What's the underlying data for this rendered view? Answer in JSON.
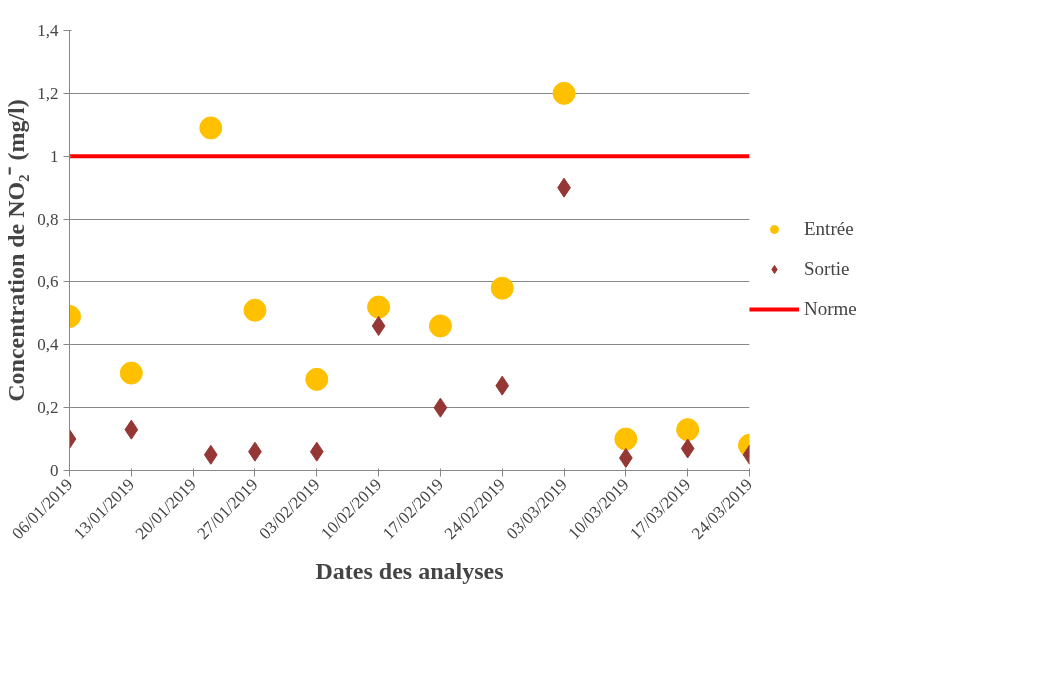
{
  "chart_data": {
    "type": "scatter",
    "xlabel": "Dates des analyses",
    "ylabel": "Concentration de NO₂⁻ (mg/l)",
    "x": [
      "2019-01-06",
      "2019-01-13",
      "2019-01-22",
      "2019-01-27",
      "2019-02-03",
      "2019-02-10",
      "2019-02-17",
      "2019-02-24",
      "2019-03-03",
      "2019-03-10",
      "2019-03-17",
      "2019-03-24"
    ],
    "series": [
      {
        "name": "Entrée",
        "color": "#ffc000",
        "marker": "circle",
        "values": [
          0.49,
          0.31,
          1.09,
          0.51,
          0.29,
          0.52,
          0.46,
          0.58,
          1.2,
          0.1,
          0.13,
          0.08
        ]
      },
      {
        "name": "Sortie",
        "color": "#953735",
        "marker": "diamond",
        "values": [
          0.1,
          0.13,
          0.05,
          0.06,
          0.06,
          0.46,
          0.2,
          0.27,
          0.9,
          0.04,
          0.07,
          0.05
        ]
      },
      {
        "name": "Norme",
        "color": "#ff0000",
        "type": "line",
        "marker": "none",
        "x": [
          "2019-01-06",
          "2019-03-24"
        ],
        "values": [
          1,
          1
        ]
      }
    ],
    "xlim": [
      "2019-01-06",
      "2019-03-24"
    ],
    "xticks": [
      {
        "value": "2019-01-06",
        "label": "06/01/2019"
      },
      {
        "value": "2019-01-13",
        "label": "13/01/2019"
      },
      {
        "value": "2019-01-20",
        "label": "20/01/2019"
      },
      {
        "value": "2019-01-27",
        "label": "27/01/2019"
      },
      {
        "value": "2019-02-03",
        "label": "03/02/2019"
      },
      {
        "value": "2019-02-10",
        "label": "10/02/2019"
      },
      {
        "value": "2019-02-17",
        "label": "17/02/2019"
      },
      {
        "value": "2019-02-24",
        "label": "24/02/2019"
      },
      {
        "value": "2019-03-03",
        "label": "03/03/2019"
      },
      {
        "value": "2019-03-10",
        "label": "10/03/2019"
      },
      {
        "value": "2019-03-17",
        "label": "17/03/2019"
      },
      {
        "value": "2019-03-24",
        "label": "24/03/2019"
      }
    ],
    "ylim": [
      0,
      1.4
    ],
    "yticks": [
      0,
      {
        "value": 0.2,
        "label": "0,2"
      },
      {
        "value": 0.4,
        "label": "0,4"
      },
      {
        "value": 0.6,
        "label": "0,6"
      },
      {
        "value": 0.8,
        "label": "0,8"
      },
      1,
      {
        "value": 1.2,
        "label": "1,2"
      },
      {
        "value": 1.4,
        "label": "1,4"
      }
    ],
    "grid": "y",
    "legend": "right"
  }
}
